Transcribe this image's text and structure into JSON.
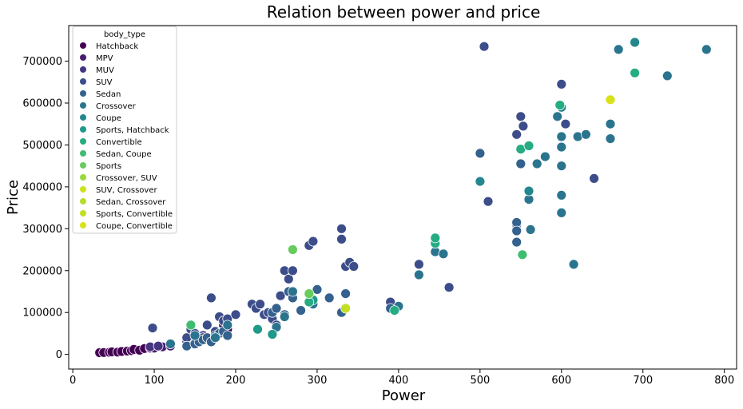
{
  "chart_data": {
    "type": "scatter",
    "title": "Relation between power and price",
    "xlabel": "Power",
    "ylabel": "Price",
    "xlim": [
      -5,
      815
    ],
    "ylim": [
      -35000,
      785000
    ],
    "xticks": [
      0,
      100,
      200,
      300,
      400,
      500,
      600,
      700,
      800
    ],
    "yticks": [
      0,
      100000,
      200000,
      300000,
      400000,
      500000,
      600000,
      700000
    ],
    "xtick_labels": [
      "0",
      "100",
      "200",
      "300",
      "400",
      "500",
      "600",
      "700",
      "800"
    ],
    "ytick_labels": [
      "0",
      "100000",
      "200000",
      "300000",
      "400000",
      "500000",
      "600000",
      "700000"
    ],
    "grid": false,
    "legend": {
      "title": "body_type",
      "placement": "top-left",
      "entries": [
        {
          "name": "Hatchback",
          "color": "#440154"
        },
        {
          "name": "MPV",
          "color": "#481c6e"
        },
        {
          "name": "MUV",
          "color": "#453581"
        },
        {
          "name": "SUV",
          "color": "#3d4d8a"
        },
        {
          "name": "Sedan",
          "color": "#34618d"
        },
        {
          "name": "Crossover",
          "color": "#2b748e"
        },
        {
          "name": "Coupe",
          "color": "#24878e"
        },
        {
          "name": "Sports, Hatchback",
          "color": "#1f998a"
        },
        {
          "name": "Convertible",
          "color": "#25ac82"
        },
        {
          "name": "Sedan, Coupe",
          "color": "#40bd72"
        },
        {
          "name": "Sports",
          "color": "#67cc5c"
        },
        {
          "name": "Crossover, SUV",
          "color": "#98d83e"
        },
        {
          "name": "SUV, Crossover",
          "color": "#cde11d"
        },
        {
          "name": "Sedan, Crossover",
          "color": "#b4de2c"
        },
        {
          "name": "Sports, Convertible",
          "color": "#c2df23"
        },
        {
          "name": "Coupe, Convertible",
          "color": "#d8e219"
        }
      ]
    },
    "series": [
      {
        "name": "Hatchback",
        "points": [
          [
            33,
            4000
          ],
          [
            38,
            4500
          ],
          [
            45,
            5000
          ],
          [
            48,
            6000
          ],
          [
            55,
            5500
          ],
          [
            60,
            7000
          ],
          [
            67,
            8000
          ],
          [
            72,
            9000
          ],
          [
            75,
            12000
          ],
          [
            82,
            10000
          ],
          [
            88,
            14000
          ],
          [
            95,
            15000
          ],
          [
            150,
            45000
          ],
          [
            190,
            60000
          ]
        ]
      },
      {
        "name": "MPV",
        "points": [
          [
            100,
            15000
          ],
          [
            110,
            18000
          ],
          [
            120,
            20000
          ],
          [
            160,
            40000
          ],
          [
            185,
            70000
          ]
        ]
      },
      {
        "name": "MUV",
        "points": [
          [
            95,
            18000
          ],
          [
            105,
            20000
          ],
          [
            120,
            25000
          ],
          [
            140,
            30000
          ],
          [
            150,
            35000
          ],
          [
            160,
            45000
          ],
          [
            180,
            50000
          ]
        ]
      },
      {
        "name": "SUV",
        "points": [
          [
            98,
            63000
          ],
          [
            140,
            40000
          ],
          [
            145,
            60000
          ],
          [
            150,
            50000
          ],
          [
            155,
            35000
          ],
          [
            160,
            40000
          ],
          [
            165,
            70000
          ],
          [
            170,
            135000
          ],
          [
            175,
            55000
          ],
          [
            180,
            90000
          ],
          [
            185,
            80000
          ],
          [
            190,
            85000
          ],
          [
            200,
            95000
          ],
          [
            220,
            120000
          ],
          [
            225,
            110000
          ],
          [
            230,
            120000
          ],
          [
            235,
            95000
          ],
          [
            240,
            100000
          ],
          [
            245,
            85000
          ],
          [
            250,
            70000
          ],
          [
            255,
            140000
          ],
          [
            260,
            200000
          ],
          [
            265,
            180000
          ],
          [
            270,
            200000
          ],
          [
            290,
            260000
          ],
          [
            295,
            270000
          ],
          [
            330,
            300000
          ],
          [
            330,
            275000
          ],
          [
            335,
            210000
          ],
          [
            340,
            220000
          ],
          [
            345,
            210000
          ],
          [
            390,
            125000
          ],
          [
            425,
            215000
          ],
          [
            462,
            160000
          ],
          [
            505,
            735000
          ],
          [
            510,
            365000
          ],
          [
            545,
            525000
          ],
          [
            550,
            568000
          ],
          [
            553,
            545000
          ],
          [
            600,
            645000
          ],
          [
            605,
            550000
          ],
          [
            640,
            420000
          ]
        ]
      },
      {
        "name": "Sedan",
        "points": [
          [
            140,
            20000
          ],
          [
            150,
            25000
          ],
          [
            155,
            30000
          ],
          [
            160,
            35000
          ],
          [
            165,
            40000
          ],
          [
            170,
            30000
          ],
          [
            175,
            45000
          ],
          [
            180,
            50000
          ],
          [
            185,
            55000
          ],
          [
            190,
            45000
          ],
          [
            245,
            100000
          ],
          [
            250,
            110000
          ],
          [
            260,
            95000
          ],
          [
            265,
            150000
          ],
          [
            270,
            135000
          ],
          [
            280,
            105000
          ],
          [
            295,
            130000
          ],
          [
            300,
            155000
          ],
          [
            315,
            135000
          ],
          [
            330,
            100000
          ],
          [
            335,
            145000
          ],
          [
            390,
            110000
          ],
          [
            500,
            480000
          ],
          [
            545,
            300000
          ],
          [
            545,
            310000
          ],
          [
            545,
            315000
          ],
          [
            545,
            295000
          ],
          [
            545,
            268000
          ],
          [
            550,
            455000
          ]
        ]
      },
      {
        "name": "Crossover",
        "points": [
          [
            120,
            25000
          ],
          [
            150,
            45000
          ],
          [
            175,
            40000
          ],
          [
            190,
            70000
          ],
          [
            250,
            65000
          ],
          [
            260,
            90000
          ],
          [
            270,
            150000
          ],
          [
            295,
            120000
          ],
          [
            400,
            115000
          ],
          [
            425,
            190000
          ],
          [
            445,
            245000
          ],
          [
            455,
            240000
          ],
          [
            560,
            370000
          ],
          [
            562,
            298000
          ],
          [
            570,
            455000
          ],
          [
            580,
            472000
          ],
          [
            595,
            568000
          ],
          [
            600,
            495000
          ],
          [
            600,
            380000
          ],
          [
            600,
            338000
          ],
          [
            600,
            450000
          ],
          [
            600,
            520000
          ],
          [
            615,
            215000
          ],
          [
            620,
            520000
          ],
          [
            630,
            525000
          ],
          [
            660,
            550000
          ],
          [
            660,
            515000
          ],
          [
            670,
            728000
          ],
          [
            730,
            665000
          ],
          [
            778,
            728000
          ]
        ]
      },
      {
        "name": "Coupe",
        "points": [
          [
            500,
            413000
          ],
          [
            560,
            390000
          ],
          [
            600,
            590000
          ],
          [
            690,
            745000
          ]
        ]
      },
      {
        "name": "Sports, Hatchback",
        "points": [
          [
            227,
            60000
          ],
          [
            245,
            48000
          ],
          [
            295,
            130000
          ]
        ]
      },
      {
        "name": "Convertible",
        "points": [
          [
            290,
            125000
          ],
          [
            395,
            105000
          ],
          [
            445,
            265000
          ],
          [
            445,
            278000
          ],
          [
            550,
            490000
          ],
          [
            560,
            498000
          ],
          [
            598,
            595000
          ],
          [
            690,
            672000
          ]
        ]
      },
      {
        "name": "Sedan, Coupe",
        "points": [
          [
            145,
            70000
          ],
          [
            552,
            238000
          ]
        ]
      },
      {
        "name": "Sports",
        "points": [
          [
            270,
            250000
          ],
          [
            290,
            145000
          ]
        ]
      },
      {
        "name": "Crossover, SUV",
        "points": []
      },
      {
        "name": "SUV, Crossover",
        "points": []
      },
      {
        "name": "Sedan, Crossover",
        "points": []
      },
      {
        "name": "Sports, Convertible",
        "points": [
          [
            335,
            110000
          ]
        ]
      },
      {
        "name": "Coupe, Convertible",
        "points": [
          [
            660,
            608000
          ]
        ]
      }
    ]
  }
}
